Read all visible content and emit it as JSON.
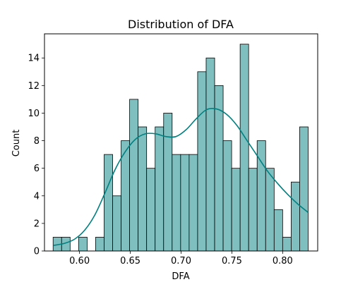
{
  "chart_data": {
    "type": "bar",
    "title": "Distribution of DFA",
    "xlabel": "DFA",
    "ylabel": "Count",
    "xlim": [
      0.5655,
      0.8345
    ],
    "ylim": [
      0,
      15.75
    ],
    "x_ticks": [
      0.6,
      0.65,
      0.7,
      0.75,
      0.8
    ],
    "x_tick_labels": [
      "0.60",
      "0.65",
      "0.70",
      "0.75",
      "0.80"
    ],
    "y_ticks": [
      0,
      2,
      4,
      6,
      8,
      10,
      12,
      14
    ],
    "y_tick_labels": [
      "0",
      "2",
      "4",
      "6",
      "8",
      "10",
      "12",
      "14"
    ],
    "bin_start": 0.574,
    "bin_width": 0.00837,
    "counts": [
      1,
      1,
      0,
      1,
      0,
      1,
      7,
      4,
      8,
      11,
      9,
      6,
      9,
      10,
      7,
      7,
      7,
      13,
      14,
      12,
      8,
      6,
      15,
      6,
      8,
      6,
      3,
      1,
      5,
      9
    ],
    "kde": {
      "x": [
        0.574,
        0.585,
        0.595,
        0.605,
        0.615,
        0.625,
        0.635,
        0.645,
        0.655,
        0.665,
        0.675,
        0.685,
        0.695,
        0.705,
        0.715,
        0.725,
        0.735,
        0.745,
        0.755,
        0.765,
        0.775,
        0.785,
        0.795,
        0.805,
        0.815,
        0.825
      ],
      "y": [
        0.4,
        0.55,
        0.85,
        1.5,
        2.6,
        4.2,
        5.9,
        7.2,
        8.1,
        8.5,
        8.5,
        8.3,
        8.3,
        8.8,
        9.6,
        10.25,
        10.3,
        9.9,
        9.1,
        8.0,
        6.9,
        5.8,
        4.9,
        4.1,
        3.4,
        2.8
      ]
    },
    "colors": {
      "bar_fill": "#80bfbf",
      "bar_edge": "#000000",
      "kde_line": "#008080"
    },
    "grid": false,
    "legend": "none"
  }
}
